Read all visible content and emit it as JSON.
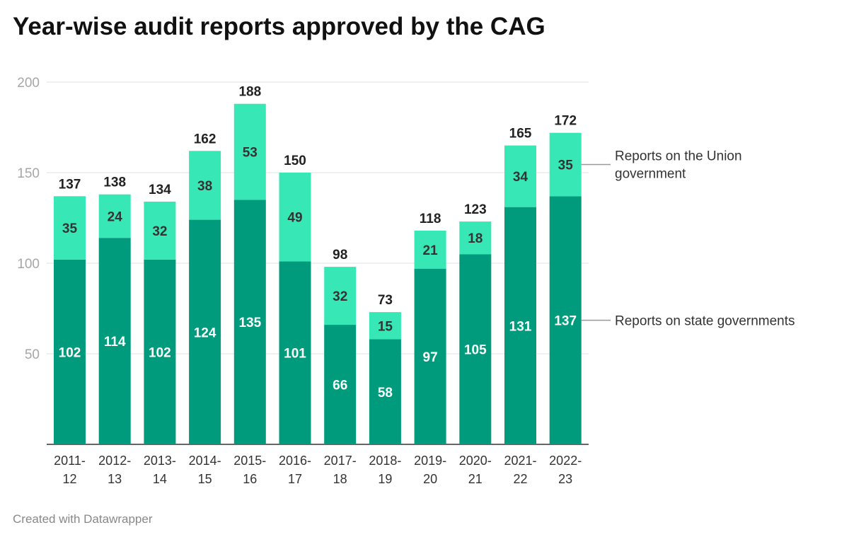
{
  "title": "Year-wise audit reports approved by the CAG",
  "footer": "Created with Datawrapper",
  "colors": {
    "state": "#009b7d",
    "union": "#37e8b6"
  },
  "chart_data": {
    "type": "bar",
    "stacked": true,
    "title": "Year-wise audit reports approved by the CAG",
    "categories": [
      [
        "2011-",
        "12"
      ],
      [
        "2012-",
        "13"
      ],
      [
        "2013-",
        "14"
      ],
      [
        "2014-",
        "15"
      ],
      [
        "2015-",
        "16"
      ],
      [
        "2016-",
        "17"
      ],
      [
        "2017-",
        "18"
      ],
      [
        "2018-",
        "19"
      ],
      [
        "2019-",
        "20"
      ],
      [
        "2020-",
        "21"
      ],
      [
        "2021-",
        "22"
      ],
      [
        "2022-",
        "23"
      ]
    ],
    "series": [
      {
        "name": "Reports on state governments",
        "values": [
          102,
          114,
          102,
          124,
          135,
          101,
          66,
          58,
          97,
          105,
          131,
          137
        ]
      },
      {
        "name": "Reports on the Union government",
        "values": [
          35,
          24,
          32,
          38,
          53,
          49,
          32,
          15,
          21,
          18,
          34,
          35
        ]
      }
    ],
    "totals": [
      137,
      138,
      134,
      162,
      188,
      150,
      98,
      73,
      118,
      123,
      165,
      172
    ],
    "ylim": [
      0,
      200
    ],
    "yticks": [
      50,
      100,
      150,
      200
    ],
    "grid": true,
    "legend": "right, inline labels"
  }
}
